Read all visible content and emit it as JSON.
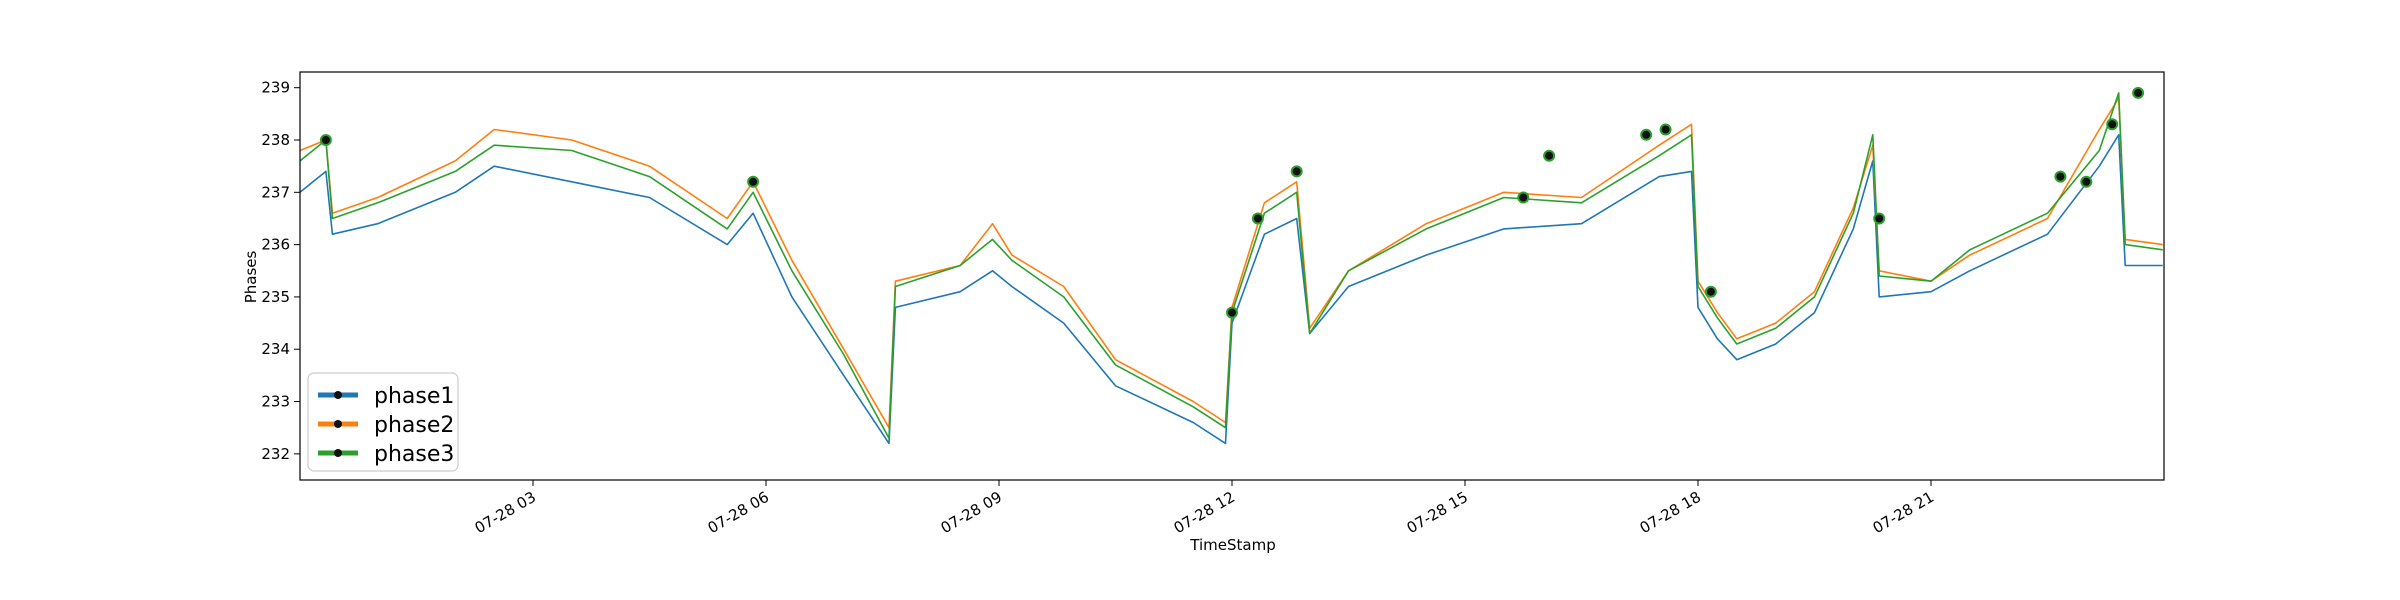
{
  "chart_data": {
    "type": "line",
    "title": "",
    "xlabel": "TimeStamp",
    "ylabel": "Phases",
    "xlim": [
      "2023-07-28 00:00",
      "2023-07-29 00:00"
    ],
    "ylim": [
      231.5,
      239.3
    ],
    "x_ticks": [
      {
        "t": "2023-07-28 03:00",
        "label": "07-28 03"
      },
      {
        "t": "2023-07-28 06:00",
        "label": "07-28 06"
      },
      {
        "t": "2023-07-28 09:00",
        "label": "07-28 09"
      },
      {
        "t": "2023-07-28 12:00",
        "label": "07-28 12"
      },
      {
        "t": "2023-07-28 15:00",
        "label": "07-28 15"
      },
      {
        "t": "2023-07-28 18:00",
        "label": "07-28 18"
      },
      {
        "t": "2023-07-28 21:00",
        "label": "07-28 21"
      }
    ],
    "y_ticks": [
      232,
      233,
      234,
      235,
      236,
      237,
      238,
      239
    ],
    "grid": false,
    "legend_position": "bottom-left",
    "x": [
      "2023-07-28 00:00",
      "2023-07-28 00:20",
      "2023-07-28 00:25",
      "2023-07-28 01:00",
      "2023-07-28 02:00",
      "2023-07-28 02:30",
      "2023-07-28 03:30",
      "2023-07-28 04:30",
      "2023-07-28 05:30",
      "2023-07-28 05:50",
      "2023-07-28 06:20",
      "2023-07-28 07:00",
      "2023-07-28 07:35",
      "2023-07-28 07:40",
      "2023-07-28 08:30",
      "2023-07-28 08:55",
      "2023-07-28 09:10",
      "2023-07-28 09:50",
      "2023-07-28 10:30",
      "2023-07-28 11:30",
      "2023-07-28 11:55",
      "2023-07-28 12:00",
      "2023-07-28 12:25",
      "2023-07-28 12:50",
      "2023-07-28 13:00",
      "2023-07-28 13:30",
      "2023-07-28 14:30",
      "2023-07-28 15:30",
      "2023-07-28 16:30",
      "2023-07-28 17:30",
      "2023-07-28 17:55",
      "2023-07-28 18:00",
      "2023-07-28 18:15",
      "2023-07-28 18:30",
      "2023-07-28 19:00",
      "2023-07-28 19:30",
      "2023-07-28 20:00",
      "2023-07-28 20:15",
      "2023-07-28 20:20",
      "2023-07-28 21:00",
      "2023-07-28 21:30",
      "2023-07-28 22:30",
      "2023-07-28 23:10",
      "2023-07-28 23:25",
      "2023-07-28 23:30",
      "2023-07-28 23:59"
    ],
    "series": [
      {
        "name": "phase1",
        "color": "#1f77b4",
        "values": [
          237.0,
          237.4,
          236.2,
          236.4,
          237.0,
          237.5,
          237.2,
          236.9,
          236.0,
          236.6,
          235.0,
          233.5,
          232.2,
          234.8,
          235.1,
          235.5,
          235.2,
          234.5,
          233.3,
          232.6,
          232.2,
          234.5,
          236.2,
          236.5,
          234.3,
          235.2,
          235.8,
          236.3,
          236.4,
          237.3,
          237.4,
          234.8,
          234.2,
          233.8,
          234.1,
          234.7,
          236.3,
          237.6,
          235.0,
          235.1,
          235.5,
          236.2,
          237.5,
          238.1,
          235.6,
          235.6
        ]
      },
      {
        "name": "phase2",
        "color": "#ff7f0e",
        "values": [
          237.8,
          238.0,
          236.6,
          236.9,
          237.6,
          238.2,
          238.0,
          237.5,
          236.5,
          237.2,
          235.7,
          234.0,
          232.5,
          235.3,
          235.6,
          236.4,
          235.8,
          235.2,
          233.8,
          233.0,
          232.6,
          234.8,
          236.8,
          237.2,
          234.4,
          235.5,
          236.4,
          237.0,
          236.9,
          237.9,
          238.3,
          235.3,
          234.7,
          234.2,
          234.5,
          235.1,
          236.7,
          237.9,
          235.5,
          235.3,
          235.8,
          236.5,
          238.2,
          238.8,
          236.1,
          236.0
        ]
      },
      {
        "name": "phase3",
        "color": "#2ca02c",
        "values": [
          237.6,
          238.0,
          236.5,
          236.8,
          237.4,
          237.9,
          237.8,
          237.3,
          236.3,
          237.0,
          235.5,
          233.9,
          232.3,
          235.2,
          235.6,
          236.1,
          235.7,
          235.0,
          233.7,
          232.9,
          232.5,
          234.7,
          236.6,
          237.0,
          234.3,
          235.5,
          236.3,
          236.9,
          236.8,
          237.7,
          238.1,
          235.2,
          234.6,
          234.1,
          234.4,
          235.0,
          236.6,
          238.1,
          235.4,
          235.3,
          235.9,
          236.6,
          237.8,
          238.9,
          236.0,
          235.9
        ]
      }
    ],
    "highlighted_points": [
      {
        "t": "2023-07-28 00:20",
        "v": 238.0
      },
      {
        "t": "2023-07-28 05:50",
        "v": 237.2
      },
      {
        "t": "2023-07-28 12:00",
        "v": 234.7
      },
      {
        "t": "2023-07-28 12:20",
        "v": 236.5
      },
      {
        "t": "2023-07-28 12:50",
        "v": 237.4
      },
      {
        "t": "2023-07-28 15:45",
        "v": 236.9
      },
      {
        "t": "2023-07-28 16:05",
        "v": 237.7
      },
      {
        "t": "2023-07-28 17:20",
        "v": 238.1
      },
      {
        "t": "2023-07-28 17:35",
        "v": 238.2
      },
      {
        "t": "2023-07-28 18:10",
        "v": 235.1
      },
      {
        "t": "2023-07-28 20:20",
        "v": 236.5
      },
      {
        "t": "2023-07-28 22:40",
        "v": 237.3
      },
      {
        "t": "2023-07-28 23:00",
        "v": 237.2
      },
      {
        "t": "2023-07-28 23:20",
        "v": 238.3
      },
      {
        "t": "2023-07-28 23:40",
        "v": 238.9
      }
    ]
  }
}
